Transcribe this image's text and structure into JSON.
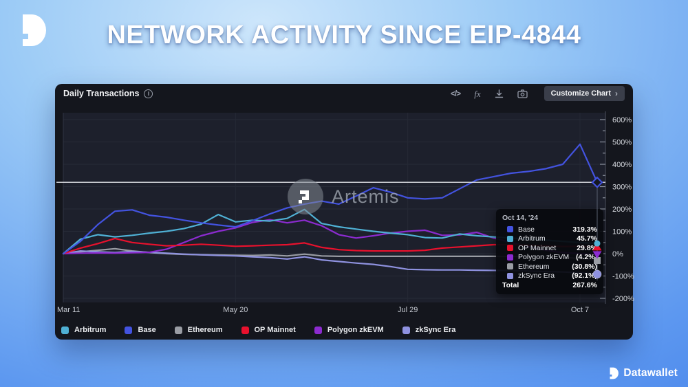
{
  "page": {
    "title": "NETWORK ACTIVITY SINCE EIP-4844"
  },
  "panel": {
    "title": "Daily Transactions",
    "icons": [
      "code-icon",
      "function-icon",
      "download-icon",
      "camera-icon"
    ],
    "code_glyph": "</>",
    "fx_glyph": "fx",
    "customize_button": "Customize Chart",
    "chevron": "›"
  },
  "watermark": {
    "text": "Artemis"
  },
  "tooltip": {
    "title": "Oct 14, '24",
    "rows": [
      {
        "label": "Base",
        "value": "319.3%",
        "color": "#4353e0"
      },
      {
        "label": "Arbitrum",
        "value": "45.7%",
        "color": "#4fb0d4"
      },
      {
        "label": "OP Mainnet",
        "value": "29.8%",
        "color": "#e8112d"
      },
      {
        "label": "Polygon zkEVM",
        "value": "(4.2%)",
        "color": "#8c2bd0"
      },
      {
        "label": "Ethereum",
        "value": "(30.8%)",
        "color": "#9a9da4"
      },
      {
        "label": "zkSync Era",
        "value": "(92.1%)",
        "color": "#8f92e0"
      }
    ],
    "total_label": "Total",
    "total_value": "267.6%"
  },
  "legend": [
    {
      "label": "Arbitrum",
      "color": "#4fb0d4"
    },
    {
      "label": "Base",
      "color": "#4353e0"
    },
    {
      "label": "Ethereum",
      "color": "#9a9da4"
    },
    {
      "label": "OP Mainnet",
      "color": "#e8112d"
    },
    {
      "label": "Polygon zkEVM",
      "color": "#8c2bd0"
    },
    {
      "label": "zkSync Era",
      "color": "#8f92e0"
    }
  ],
  "footer": {
    "brand": "Datawallet"
  },
  "chart_data": {
    "type": "line",
    "title": "Daily Transactions",
    "subtitle": "Percent change since EIP-4844 (Mar 11, 2024)",
    "x_interval": "weekly",
    "x_start": "Mar 11",
    "x_end": "Oct 14, '24",
    "x_tick_labels": [
      "Mar 11",
      "May 20",
      "Jul 29",
      "Oct 7"
    ],
    "x_tick_positions": [
      0,
      10,
      20,
      30
    ],
    "y_ticks": [
      600,
      500,
      400,
      300,
      200,
      100,
      0,
      -100,
      -200
    ],
    "y_unit": "%",
    "ylim": [
      -200,
      600
    ],
    "y_axis_side": "right",
    "grid": true,
    "legend_position": "bottom",
    "hover": {
      "date": "Oct 14, '24",
      "line_value": 319.3,
      "total": 267.6
    },
    "series": [
      {
        "name": "Base",
        "color": "#4353e0",
        "marker": "diamond",
        "values": [
          0,
          55,
          130,
          190,
          196,
          172,
          163,
          150,
          138,
          128,
          120,
          148,
          178,
          205,
          222,
          235,
          222,
          258,
          295,
          275,
          250,
          245,
          250,
          290,
          330,
          345,
          360,
          368,
          380,
          400,
          490,
          319.3
        ]
      },
      {
        "name": "Arbitrum",
        "color": "#4fb0d4",
        "marker": "circle",
        "values": [
          0,
          65,
          85,
          75,
          82,
          92,
          100,
          112,
          132,
          175,
          142,
          150,
          146,
          158,
          198,
          135,
          120,
          110,
          100,
          92,
          85,
          72,
          70,
          88,
          80,
          75,
          70,
          65,
          60,
          55,
          50,
          45.7
        ]
      },
      {
        "name": "OP Mainnet",
        "color": "#e8112d",
        "marker": "triangle-up",
        "values": [
          0,
          25,
          45,
          68,
          50,
          42,
          35,
          38,
          42,
          38,
          33,
          35,
          38,
          40,
          48,
          28,
          18,
          14,
          12,
          12,
          12,
          15,
          25,
          30,
          35,
          40,
          40,
          38,
          35,
          32,
          33,
          29.8
        ]
      },
      {
        "name": "Polygon zkEVM",
        "color": "#8c2bd0",
        "marker": "triangle-down",
        "values": [
          0,
          2,
          3,
          2,
          4,
          6,
          20,
          50,
          80,
          100,
          115,
          140,
          152,
          138,
          150,
          125,
          85,
          70,
          80,
          92,
          100,
          105,
          82,
          84,
          95,
          70,
          50,
          32,
          15,
          5,
          0,
          -4.2
        ]
      },
      {
        "name": "Ethereum",
        "color": "#9a9da4",
        "marker": "square",
        "values": [
          0,
          8,
          15,
          22,
          12,
          5,
          0,
          -3,
          -5,
          -6,
          -7,
          -8,
          -6,
          -10,
          -2,
          -10,
          -12,
          -12,
          -12,
          -12,
          -12,
          -12,
          -12,
          -12,
          -12,
          -12,
          -13,
          -13,
          -14,
          -16,
          -22,
          -30.8
        ]
      },
      {
        "name": "zkSync Era",
        "color": "#8f92e0",
        "marker": "circle-large",
        "values": [
          0,
          12,
          8,
          5,
          10,
          6,
          2,
          -2,
          -5,
          -8,
          -10,
          -14,
          -18,
          -24,
          -14,
          -28,
          -35,
          -42,
          -48,
          -58,
          -70,
          -72,
          -73,
          -73,
          -74,
          -75,
          -76,
          -78,
          -80,
          -82,
          -85,
          -92.1
        ]
      }
    ]
  }
}
